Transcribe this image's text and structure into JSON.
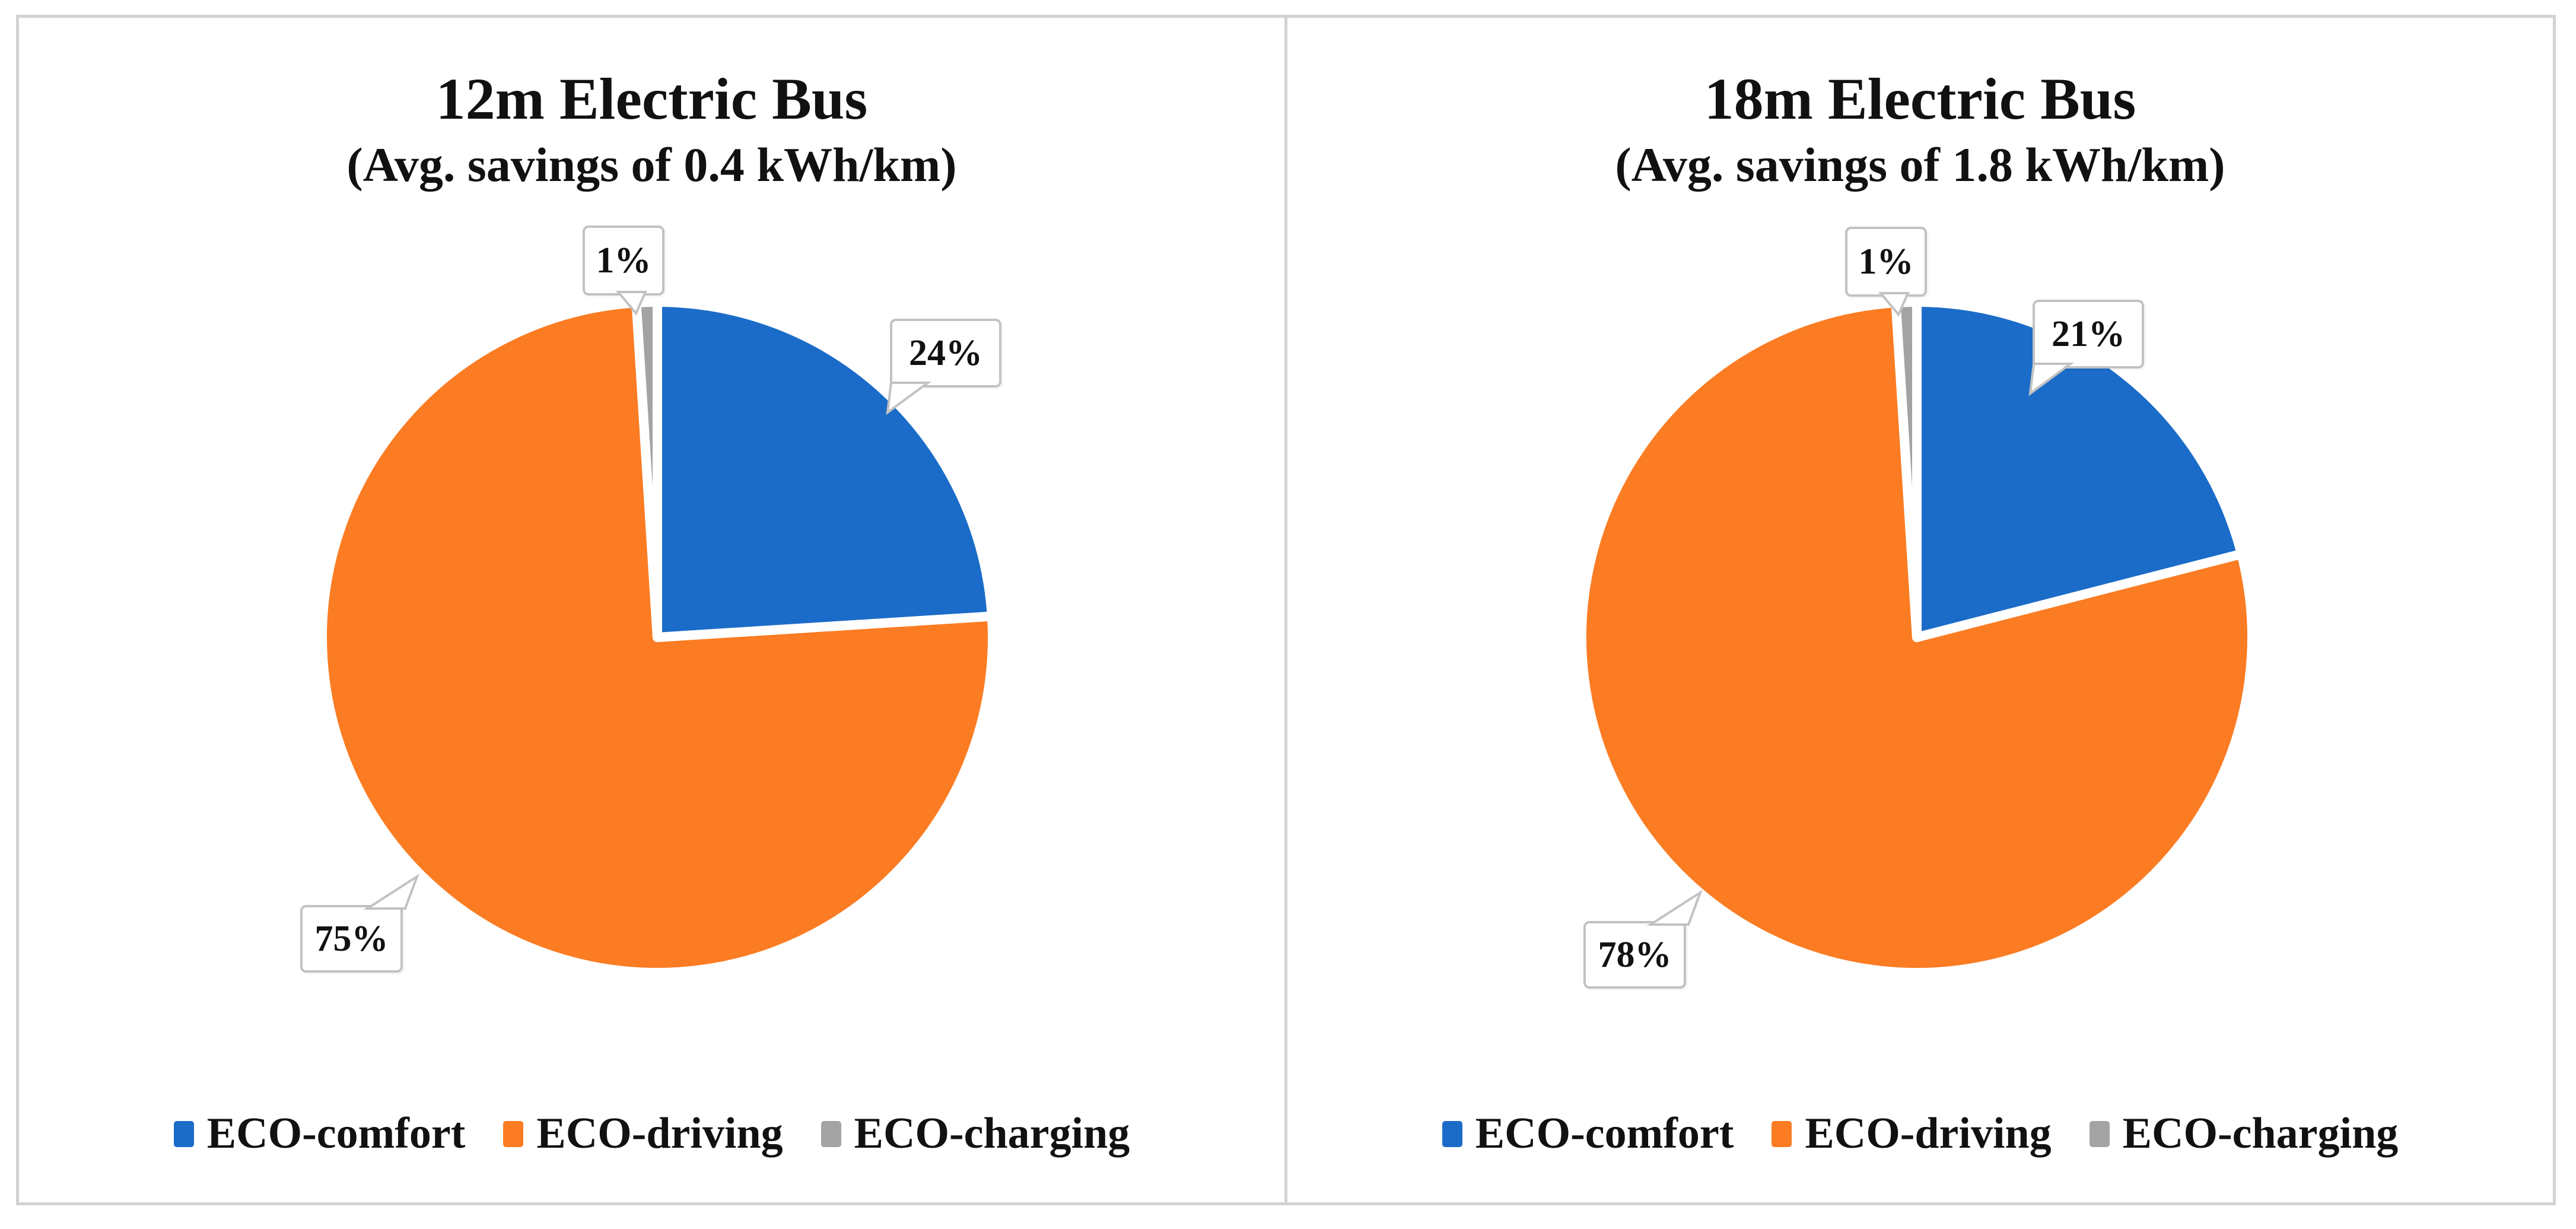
{
  "chart_data": [
    {
      "type": "pie",
      "title": "12m Electric Bus",
      "subtitle": "(Avg. savings of 0.4 kWh/km)",
      "categories": [
        "ECO-comfort",
        "ECO-driving",
        "ECO-charging"
      ],
      "values": [
        24,
        75,
        1
      ],
      "unit": "%",
      "data_labels": [
        "24%",
        "75%",
        "1%"
      ],
      "colors": [
        "#1B6CC8",
        "#FB7C23",
        "#A3A3A3"
      ],
      "start_angle_deg": 0,
      "direction": "clockwise",
      "legend_position": "bottom"
    },
    {
      "type": "pie",
      "title": "18m Electric Bus",
      "subtitle": "(Avg. savings of 1.8 kWh/km)",
      "categories": [
        "ECO-comfort",
        "ECO-driving",
        "ECO-charging"
      ],
      "values": [
        21,
        78,
        1
      ],
      "unit": "%",
      "data_labels": [
        "21%",
        "78%",
        "1%"
      ],
      "colors": [
        "#1B6CC8",
        "#FB7C23",
        "#A3A3A3"
      ],
      "start_angle_deg": 0,
      "direction": "clockwise",
      "legend_position": "bottom"
    }
  ]
}
